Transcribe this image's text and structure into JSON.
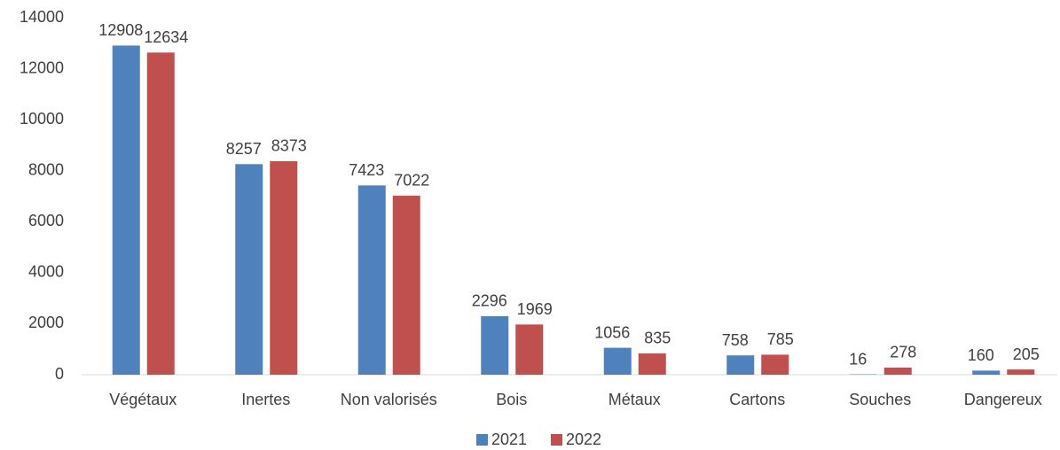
{
  "chart_data": {
    "type": "bar",
    "categories": [
      "Végétaux",
      "Inertes",
      "Non valorisés",
      "Bois",
      "Métaux",
      "Cartons",
      "Souches",
      "Dangereux"
    ],
    "series": [
      {
        "name": "2021",
        "color": "#4f81bd",
        "values": [
          12908,
          8257,
          7423,
          2296,
          1056,
          758,
          16,
          160
        ]
      },
      {
        "name": "2022",
        "color": "#c0504d",
        "values": [
          12634,
          8373,
          7022,
          1969,
          835,
          785,
          278,
          205
        ]
      }
    ],
    "ylim": [
      0,
      14000
    ],
    "yticks": [
      0,
      2000,
      4000,
      6000,
      8000,
      10000,
      12000,
      14000
    ],
    "grid": false,
    "legend": "bottom"
  }
}
